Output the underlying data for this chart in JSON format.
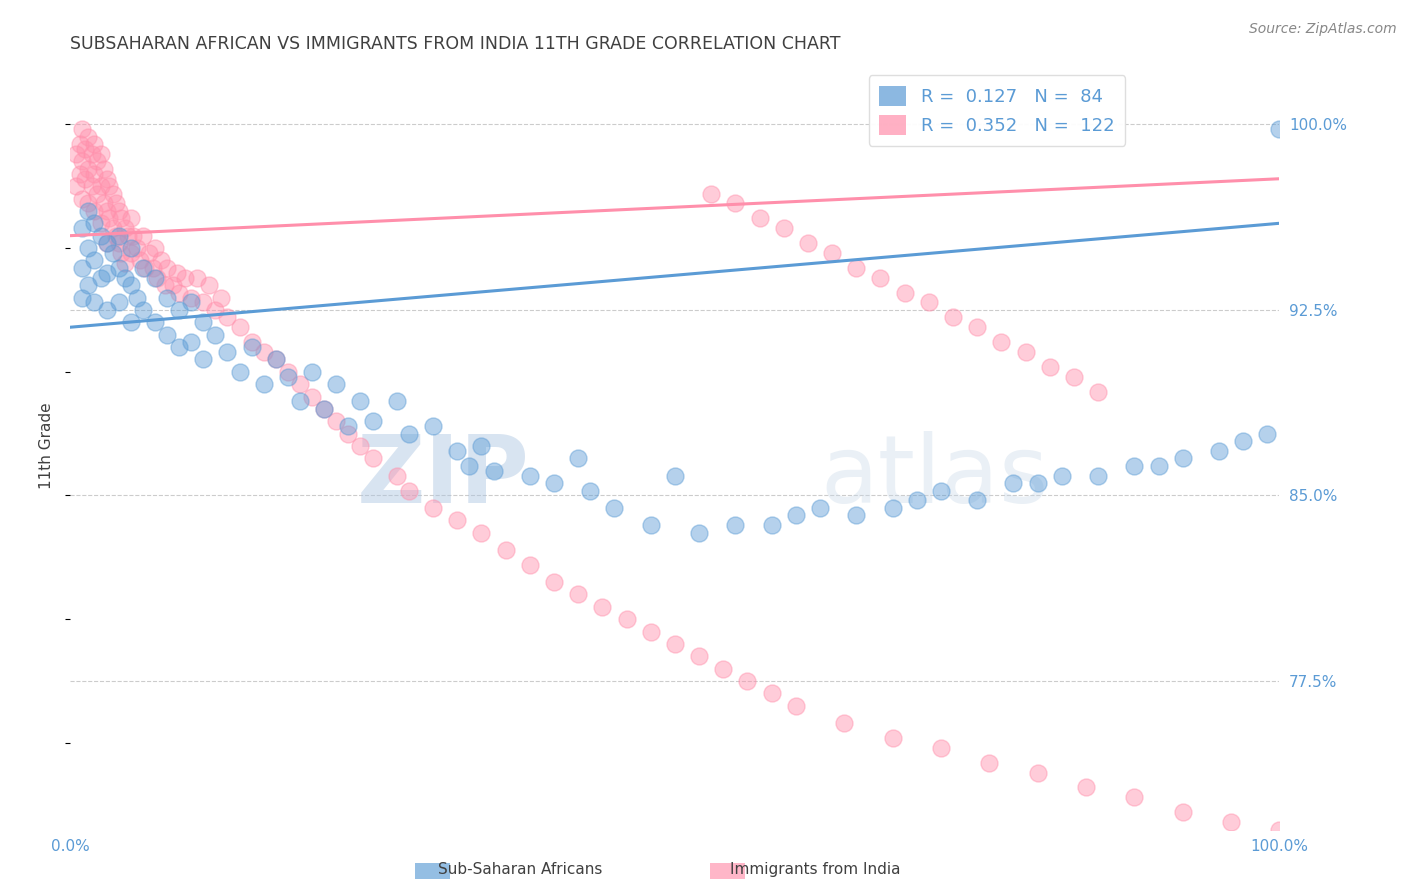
{
  "title": "SUBSAHARAN AFRICAN VS IMMIGRANTS FROM INDIA 11TH GRADE CORRELATION CHART",
  "source": "Source: ZipAtlas.com",
  "ylabel": "11th Grade",
  "xlim": [
    0.0,
    1.0
  ],
  "ylim": [
    0.715,
    1.025
  ],
  "blue_R": 0.127,
  "blue_N": 84,
  "pink_R": 0.352,
  "pink_N": 122,
  "blue_color": "#5B9BD5",
  "pink_color": "#FF8FAB",
  "blue_label": "Sub-Saharan Africans",
  "pink_label": "Immigrants from India",
  "watermark_zip": "ZIP",
  "watermark_atlas": "atlas",
  "title_color": "#404040",
  "axis_label_color": "#5B9BD5",
  "ytick_vals": [
    0.775,
    0.85,
    0.925,
    1.0
  ],
  "ytick_labels": [
    "77.5%",
    "85.0%",
    "92.5%",
    "100.0%"
  ],
  "blue_trend": [
    0.0,
    1.0,
    0.918,
    0.96
  ],
  "pink_trend": [
    0.0,
    1.0,
    0.955,
    0.978
  ],
  "blue_scatter_x": [
    0.01,
    0.01,
    0.01,
    0.015,
    0.015,
    0.015,
    0.02,
    0.02,
    0.02,
    0.025,
    0.025,
    0.03,
    0.03,
    0.03,
    0.035,
    0.04,
    0.04,
    0.04,
    0.045,
    0.05,
    0.05,
    0.05,
    0.055,
    0.06,
    0.06,
    0.07,
    0.07,
    0.08,
    0.08,
    0.09,
    0.09,
    0.1,
    0.1,
    0.11,
    0.11,
    0.12,
    0.13,
    0.14,
    0.15,
    0.16,
    0.17,
    0.18,
    0.19,
    0.2,
    0.21,
    0.22,
    0.23,
    0.24,
    0.25,
    0.27,
    0.28,
    0.3,
    0.32,
    0.33,
    0.34,
    0.35,
    0.38,
    0.4,
    0.42,
    0.43,
    0.45,
    0.48,
    0.5,
    0.52,
    0.55,
    0.58,
    0.6,
    0.62,
    0.65,
    0.68,
    0.7,
    0.72,
    0.75,
    0.78,
    0.8,
    0.82,
    0.85,
    0.88,
    0.9,
    0.92,
    0.95,
    0.97,
    0.99,
    1.0
  ],
  "blue_scatter_y": [
    0.958,
    0.942,
    0.93,
    0.965,
    0.95,
    0.935,
    0.96,
    0.945,
    0.928,
    0.955,
    0.938,
    0.952,
    0.94,
    0.925,
    0.948,
    0.955,
    0.942,
    0.928,
    0.938,
    0.95,
    0.935,
    0.92,
    0.93,
    0.942,
    0.925,
    0.938,
    0.92,
    0.93,
    0.915,
    0.925,
    0.91,
    0.928,
    0.912,
    0.92,
    0.905,
    0.915,
    0.908,
    0.9,
    0.91,
    0.895,
    0.905,
    0.898,
    0.888,
    0.9,
    0.885,
    0.895,
    0.878,
    0.888,
    0.88,
    0.888,
    0.875,
    0.878,
    0.868,
    0.862,
    0.87,
    0.86,
    0.858,
    0.855,
    0.865,
    0.852,
    0.845,
    0.838,
    0.858,
    0.835,
    0.838,
    0.838,
    0.842,
    0.845,
    0.842,
    0.845,
    0.848,
    0.852,
    0.848,
    0.855,
    0.855,
    0.858,
    0.858,
    0.862,
    0.862,
    0.865,
    0.868,
    0.872,
    0.875,
    0.998
  ],
  "pink_scatter_x": [
    0.005,
    0.005,
    0.008,
    0.008,
    0.01,
    0.01,
    0.01,
    0.012,
    0.012,
    0.015,
    0.015,
    0.015,
    0.018,
    0.018,
    0.02,
    0.02,
    0.02,
    0.022,
    0.022,
    0.025,
    0.025,
    0.025,
    0.028,
    0.028,
    0.03,
    0.03,
    0.03,
    0.032,
    0.032,
    0.035,
    0.035,
    0.038,
    0.038,
    0.04,
    0.04,
    0.042,
    0.042,
    0.045,
    0.045,
    0.048,
    0.05,
    0.05,
    0.052,
    0.055,
    0.058,
    0.06,
    0.062,
    0.065,
    0.068,
    0.07,
    0.072,
    0.075,
    0.078,
    0.08,
    0.085,
    0.088,
    0.09,
    0.095,
    0.1,
    0.105,
    0.11,
    0.115,
    0.12,
    0.125,
    0.13,
    0.14,
    0.15,
    0.16,
    0.17,
    0.18,
    0.19,
    0.2,
    0.21,
    0.22,
    0.23,
    0.24,
    0.25,
    0.27,
    0.28,
    0.3,
    0.32,
    0.34,
    0.36,
    0.38,
    0.4,
    0.42,
    0.44,
    0.46,
    0.48,
    0.5,
    0.52,
    0.54,
    0.56,
    0.58,
    0.6,
    0.64,
    0.68,
    0.72,
    0.76,
    0.8,
    0.84,
    0.88,
    0.92,
    0.96,
    1.0,
    0.53,
    0.55,
    0.57,
    0.59,
    0.61,
    0.63,
    0.65,
    0.67,
    0.69,
    0.71,
    0.73,
    0.75,
    0.77,
    0.79,
    0.81,
    0.83,
    0.85
  ],
  "pink_scatter_y": [
    0.988,
    0.975,
    0.992,
    0.98,
    0.998,
    0.985,
    0.97,
    0.99,
    0.978,
    0.995,
    0.982,
    0.968,
    0.988,
    0.975,
    0.992,
    0.98,
    0.965,
    0.985,
    0.972,
    0.988,
    0.975,
    0.96,
    0.982,
    0.968,
    0.978,
    0.965,
    0.952,
    0.975,
    0.962,
    0.972,
    0.958,
    0.968,
    0.955,
    0.965,
    0.952,
    0.962,
    0.948,
    0.958,
    0.944,
    0.955,
    0.962,
    0.948,
    0.955,
    0.95,
    0.945,
    0.955,
    0.942,
    0.948,
    0.942,
    0.95,
    0.938,
    0.945,
    0.935,
    0.942,
    0.935,
    0.94,
    0.932,
    0.938,
    0.93,
    0.938,
    0.928,
    0.935,
    0.925,
    0.93,
    0.922,
    0.918,
    0.912,
    0.908,
    0.905,
    0.9,
    0.895,
    0.89,
    0.885,
    0.88,
    0.875,
    0.87,
    0.865,
    0.858,
    0.852,
    0.845,
    0.84,
    0.835,
    0.828,
    0.822,
    0.815,
    0.81,
    0.805,
    0.8,
    0.795,
    0.79,
    0.785,
    0.78,
    0.775,
    0.77,
    0.765,
    0.758,
    0.752,
    0.748,
    0.742,
    0.738,
    0.732,
    0.728,
    0.722,
    0.718,
    0.715,
    0.972,
    0.968,
    0.962,
    0.958,
    0.952,
    0.948,
    0.942,
    0.938,
    0.932,
    0.928,
    0.922,
    0.918,
    0.912,
    0.908,
    0.902,
    0.898,
    0.892
  ]
}
